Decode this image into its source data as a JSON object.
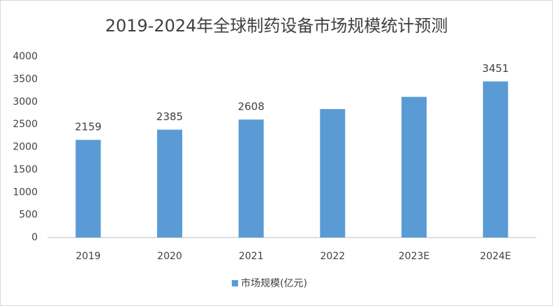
{
  "chart_data": {
    "type": "bar",
    "title": "2019-2024年全球制药设备市场规模统计预测",
    "categories": [
      "2019",
      "2020",
      "2021",
      "2022",
      "2023E",
      "2024E"
    ],
    "series": [
      {
        "name": "市场规模(亿元)",
        "color": "#5b9bd5",
        "values": [
          2159,
          2385,
          2608,
          2840,
          3110,
          3451
        ],
        "value_labels": [
          "2159",
          "2385",
          "2608",
          null,
          null,
          "3451"
        ]
      }
    ],
    "ylim": [
      0,
      4000
    ],
    "yticks": [
      0,
      500,
      1000,
      1500,
      2000,
      2500,
      3000,
      3500,
      4000
    ],
    "grid": false,
    "legend": "bottom"
  }
}
